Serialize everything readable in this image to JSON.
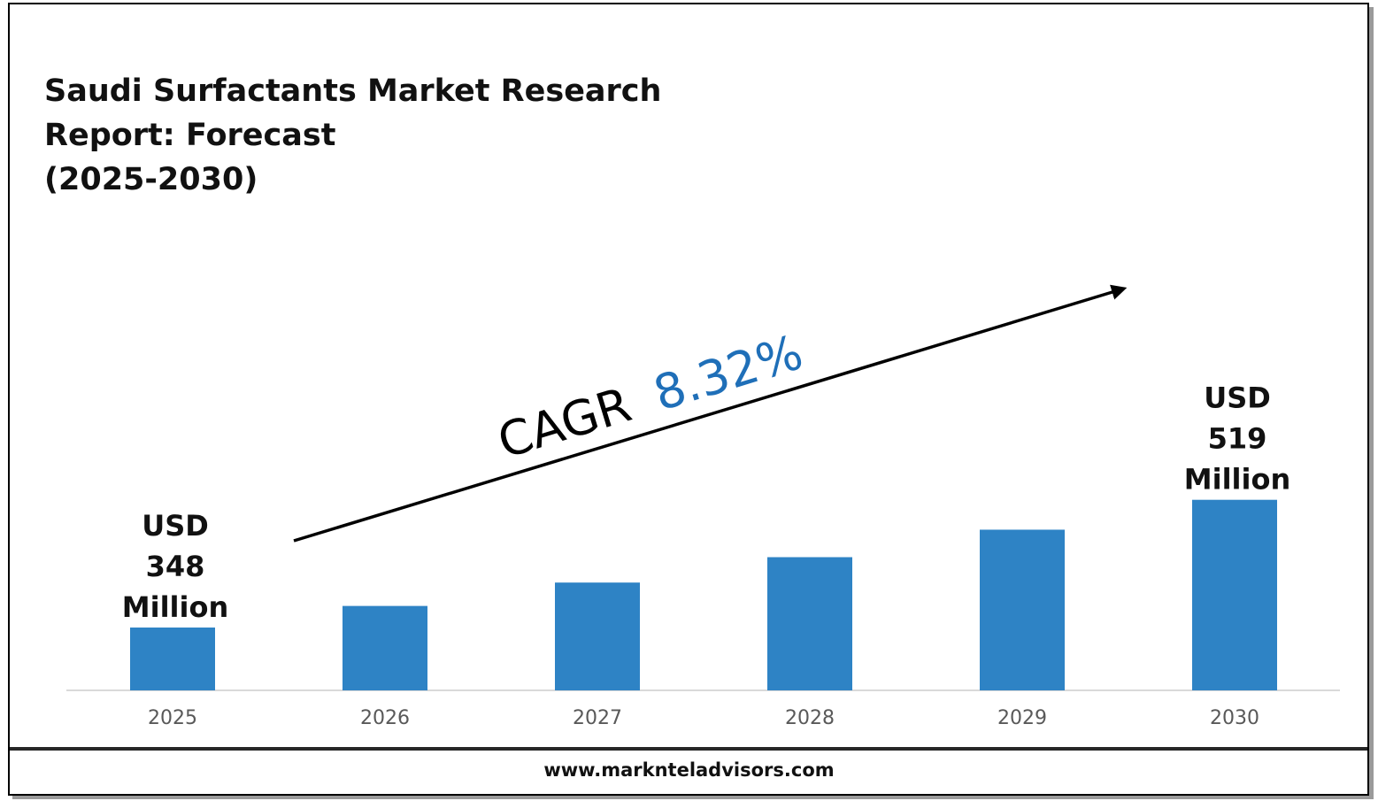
{
  "chart_data": {
    "type": "bar",
    "title": "Saudi Surfactants Market Research Report: Forecast\n(2025-2030)",
    "categories": [
      "2025",
      "2026",
      "2027",
      "2028",
      "2029",
      "2030"
    ],
    "values": [
      348,
      376.9,
      408.2,
      442.2,
      479.0,
      519
    ],
    "unit": "USD Million",
    "bar_color": "#2e83c5",
    "annotations": [
      {
        "category": "2025",
        "lines": [
          "USD",
          "348",
          "Million"
        ]
      },
      {
        "category": "2030",
        "lines": [
          "USD",
          "519",
          "Million"
        ]
      }
    ],
    "cagr": {
      "label": "CAGR",
      "value": "8.32%",
      "value_color": "#1f6fb8"
    },
    "grid": false,
    "legend": "none"
  },
  "footer": {
    "url": "www.marknteladvisors.com"
  }
}
